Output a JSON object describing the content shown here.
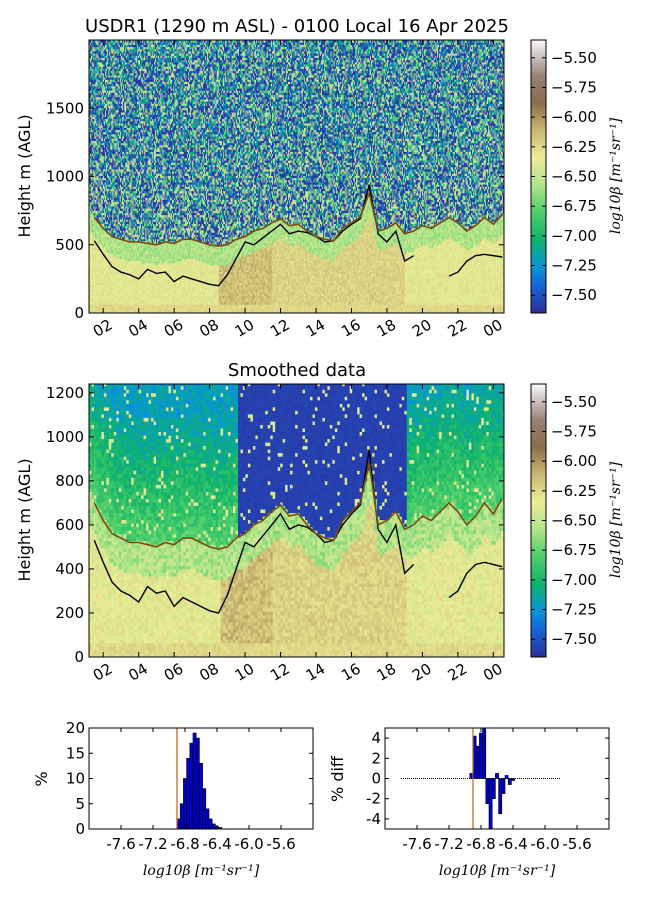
{
  "chart_data": [
    {
      "type": "heatmap",
      "title": "USDR1 (1290 m ASL) - 0100 Local 16 Apr 2025",
      "ylabel": "Height m (AGL)",
      "xticks": [
        "02",
        "04",
        "06",
        "08",
        "10",
        "12",
        "14",
        "16",
        "18",
        "20",
        "22",
        "00"
      ],
      "yticks": [
        0,
        500,
        1000,
        1500
      ],
      "ylim": [
        0,
        2000
      ],
      "colorbar": {
        "label": "log10β [m⁻¹sr⁻¹]",
        "ticks": [
          -5.5,
          -5.75,
          -6.0,
          -6.25,
          -6.5,
          -6.75,
          -7.0,
          -7.25,
          -7.5
        ],
        "tick_labels": [
          "−5.50",
          "−5.75",
          "−6.00",
          "−6.25",
          "−6.50",
          "−6.75",
          "−7.00",
          "−7.25",
          "−7.50"
        ],
        "range": [
          -7.65,
          -5.35
        ]
      },
      "series": [
        {
          "color": "#000000",
          "x_hours": [
            1.5,
            2,
            2.5,
            3,
            3.5,
            4,
            4.5,
            5,
            5.5,
            6,
            6.5,
            7,
            7.5,
            8,
            8.5,
            9,
            9.5,
            10,
            10.5,
            11,
            11.5,
            12,
            12.5,
            13,
            13.5,
            14,
            14.5,
            15,
            15.5,
            16,
            16.5,
            17,
            17.5,
            18,
            18.5,
            19,
            19.5
          ],
          "height": [
            530,
            430,
            340,
            300,
            280,
            250,
            320,
            290,
            300,
            230,
            270,
            250,
            230,
            210,
            200,
            280,
            400,
            520,
            500,
            550,
            600,
            650,
            580,
            600,
            590,
            560,
            520,
            530,
            600,
            650,
            690,
            940,
            580,
            520,
            600,
            380,
            420
          ]
        },
        {
          "color": "#000000",
          "x_hours": [
            21.5,
            22,
            22.5,
            23,
            23.5,
            24.5
          ],
          "height": [
            270,
            300,
            380,
            420,
            430,
            410
          ]
        },
        {
          "color": "#7a4a10",
          "x_hours": [
            1.5,
            2,
            2.5,
            3,
            3.5,
            4,
            4.5,
            5,
            5.5,
            6,
            6.5,
            7,
            7.5,
            8,
            8.5,
            9,
            9.5,
            10,
            10.5,
            11,
            11.5,
            12,
            12.5,
            13,
            13.5,
            14,
            14.5,
            15,
            15.5,
            16,
            16.5,
            17,
            17.5,
            18,
            18.5,
            19,
            19.5,
            20,
            20.5,
            21,
            21.5,
            22,
            22.5,
            23,
            23.5,
            24,
            24.5
          ],
          "height": [
            700,
            620,
            560,
            540,
            520,
            520,
            510,
            500,
            520,
            510,
            540,
            540,
            520,
            500,
            490,
            500,
            540,
            560,
            600,
            620,
            660,
            690,
            640,
            650,
            600,
            560,
            540,
            530,
            620,
            660,
            700,
            880,
            600,
            620,
            660,
            580,
            600,
            640,
            620,
            660,
            700,
            660,
            600,
            640,
            700,
            650,
            720
          ]
        }
      ]
    },
    {
      "type": "heatmap",
      "title": "Smoothed data",
      "ylabel": "Height m (AGL)",
      "xticks": [
        "02",
        "04",
        "06",
        "08",
        "10",
        "12",
        "14",
        "16",
        "18",
        "20",
        "22",
        "00"
      ],
      "yticks": [
        0,
        200,
        400,
        600,
        800,
        1000,
        1200
      ],
      "ylim": [
        0,
        1240
      ],
      "colorbar": {
        "label": "log10β [m⁻¹sr⁻¹]",
        "ticks": [
          -5.5,
          -5.75,
          -6.0,
          -6.25,
          -6.5,
          -6.75,
          -7.0,
          -7.25,
          -7.5
        ],
        "tick_labels": [
          "−5.50",
          "−5.75",
          "−6.00",
          "−6.25",
          "−6.50",
          "−6.75",
          "−7.00",
          "−7.25",
          "−7.50"
        ],
        "range": [
          -7.65,
          -5.35
        ]
      }
    },
    {
      "type": "bar",
      "xlabel": "log10β [m⁻¹sr⁻¹]",
      "ylabel": "%",
      "xticks": [
        -7.6,
        -7.2,
        -6.8,
        -6.4,
        -6.0,
        -5.6
      ],
      "xtick_labels": [
        "-7.6",
        "-7.2",
        "-6.8",
        "-6.4",
        "-6.0",
        "-5.6"
      ],
      "yticks": [
        0,
        5,
        10,
        15,
        20
      ],
      "xlim": [
        -8.0,
        -5.2
      ],
      "ylim": [
        0,
        20
      ],
      "vline_x": -6.9,
      "bins": [
        -6.9,
        -6.86,
        -6.82,
        -6.78,
        -6.74,
        -6.7,
        -6.66,
        -6.62,
        -6.58,
        -6.54,
        -6.5,
        -6.46,
        -6.42,
        -6.38
      ],
      "values": [
        2,
        5,
        10,
        14,
        17,
        19,
        18,
        13,
        8,
        4,
        2,
        1,
        0.5,
        0.3
      ]
    },
    {
      "type": "bar",
      "xlabel": "log10β [m⁻¹sr⁻¹]",
      "ylabel": "% diff",
      "xticks": [
        -7.6,
        -7.2,
        -6.8,
        -6.4,
        -6.0,
        -5.6
      ],
      "xtick_labels": [
        "-7.6",
        "-7.2",
        "-6.8",
        "-6.4",
        "-6.0",
        "-5.6"
      ],
      "yticks": [
        -4,
        -2,
        0,
        2,
        4
      ],
      "xlim": [
        -8.0,
        -5.2
      ],
      "ylim": [
        -5,
        5
      ],
      "vline_x": -6.9,
      "baseline_x": [
        -7.8,
        -5.8
      ],
      "bins": [
        -6.94,
        -6.9,
        -6.86,
        -6.82,
        -6.78,
        -6.74,
        -6.7,
        -6.66,
        -6.62,
        -6.58,
        -6.54,
        -6.5,
        -6.46,
        -6.42
      ],
      "values": [
        0.5,
        4.2,
        3.2,
        4.5,
        5,
        -2.5,
        -5,
        -2,
        0.5,
        -3.5,
        -1.5,
        0.3,
        -0.6,
        -0.2
      ]
    }
  ]
}
